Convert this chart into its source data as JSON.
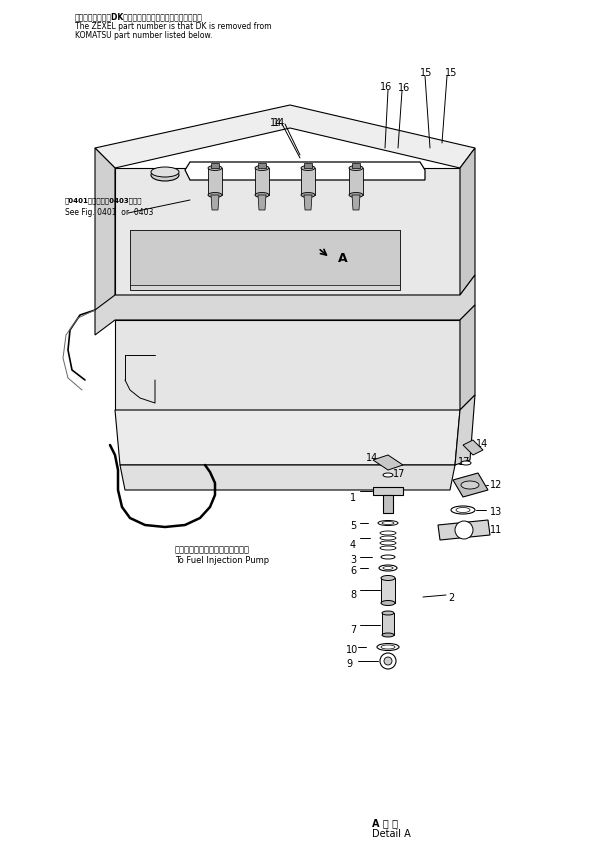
{
  "bg_color": "#ffffff",
  "line_color": "#000000",
  "fig_width": 5.99,
  "fig_height": 8.47,
  "dpi": 100,
  "top_note_jp": "品番のメーカ記号DKを除いたものがゼクセルの品番です。",
  "top_note_en1": "The ZEXEL part number is that DK is removed from",
  "top_note_en2": "KOMATSU part number listed below.",
  "left_note_jp": "図0401図または図0403図参照",
  "left_note_en": "See Fig. 0401  or  0403",
  "bottom_note_jp": "フェルインジェクションポンプへ",
  "bottom_note_en": "To Fuel Injection Pump",
  "detail_label": "A 拡 大",
  "detail_text": "Detail A"
}
